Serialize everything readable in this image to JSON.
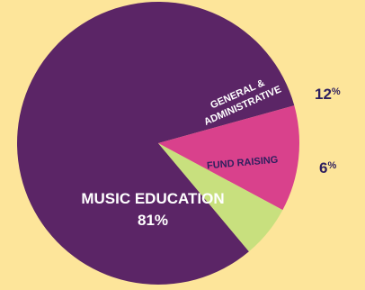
{
  "background": "#fde59a",
  "chart_data": {
    "type": "pie",
    "slices": [
      {
        "label": "MUSIC EDUCATION",
        "value": 81,
        "display": "81%",
        "color": "#5b2566",
        "label_color": "#ffffff"
      },
      {
        "label": "GENERAL & ADMINISTRATIVE",
        "label_lines": [
          "GENERAL &",
          "ADMINISTRATIVE"
        ],
        "value": 12,
        "number": "12",
        "unit": "%",
        "color": "#d9418c",
        "label_color": "#ffffff"
      },
      {
        "label": "FUND RAISING",
        "value": 6,
        "number": "6",
        "unit": "%",
        "color": "#c8e07e",
        "label_color": "#2e1f5e"
      }
    ],
    "legend": "none",
    "percent_color": "#2e1f5e"
  }
}
